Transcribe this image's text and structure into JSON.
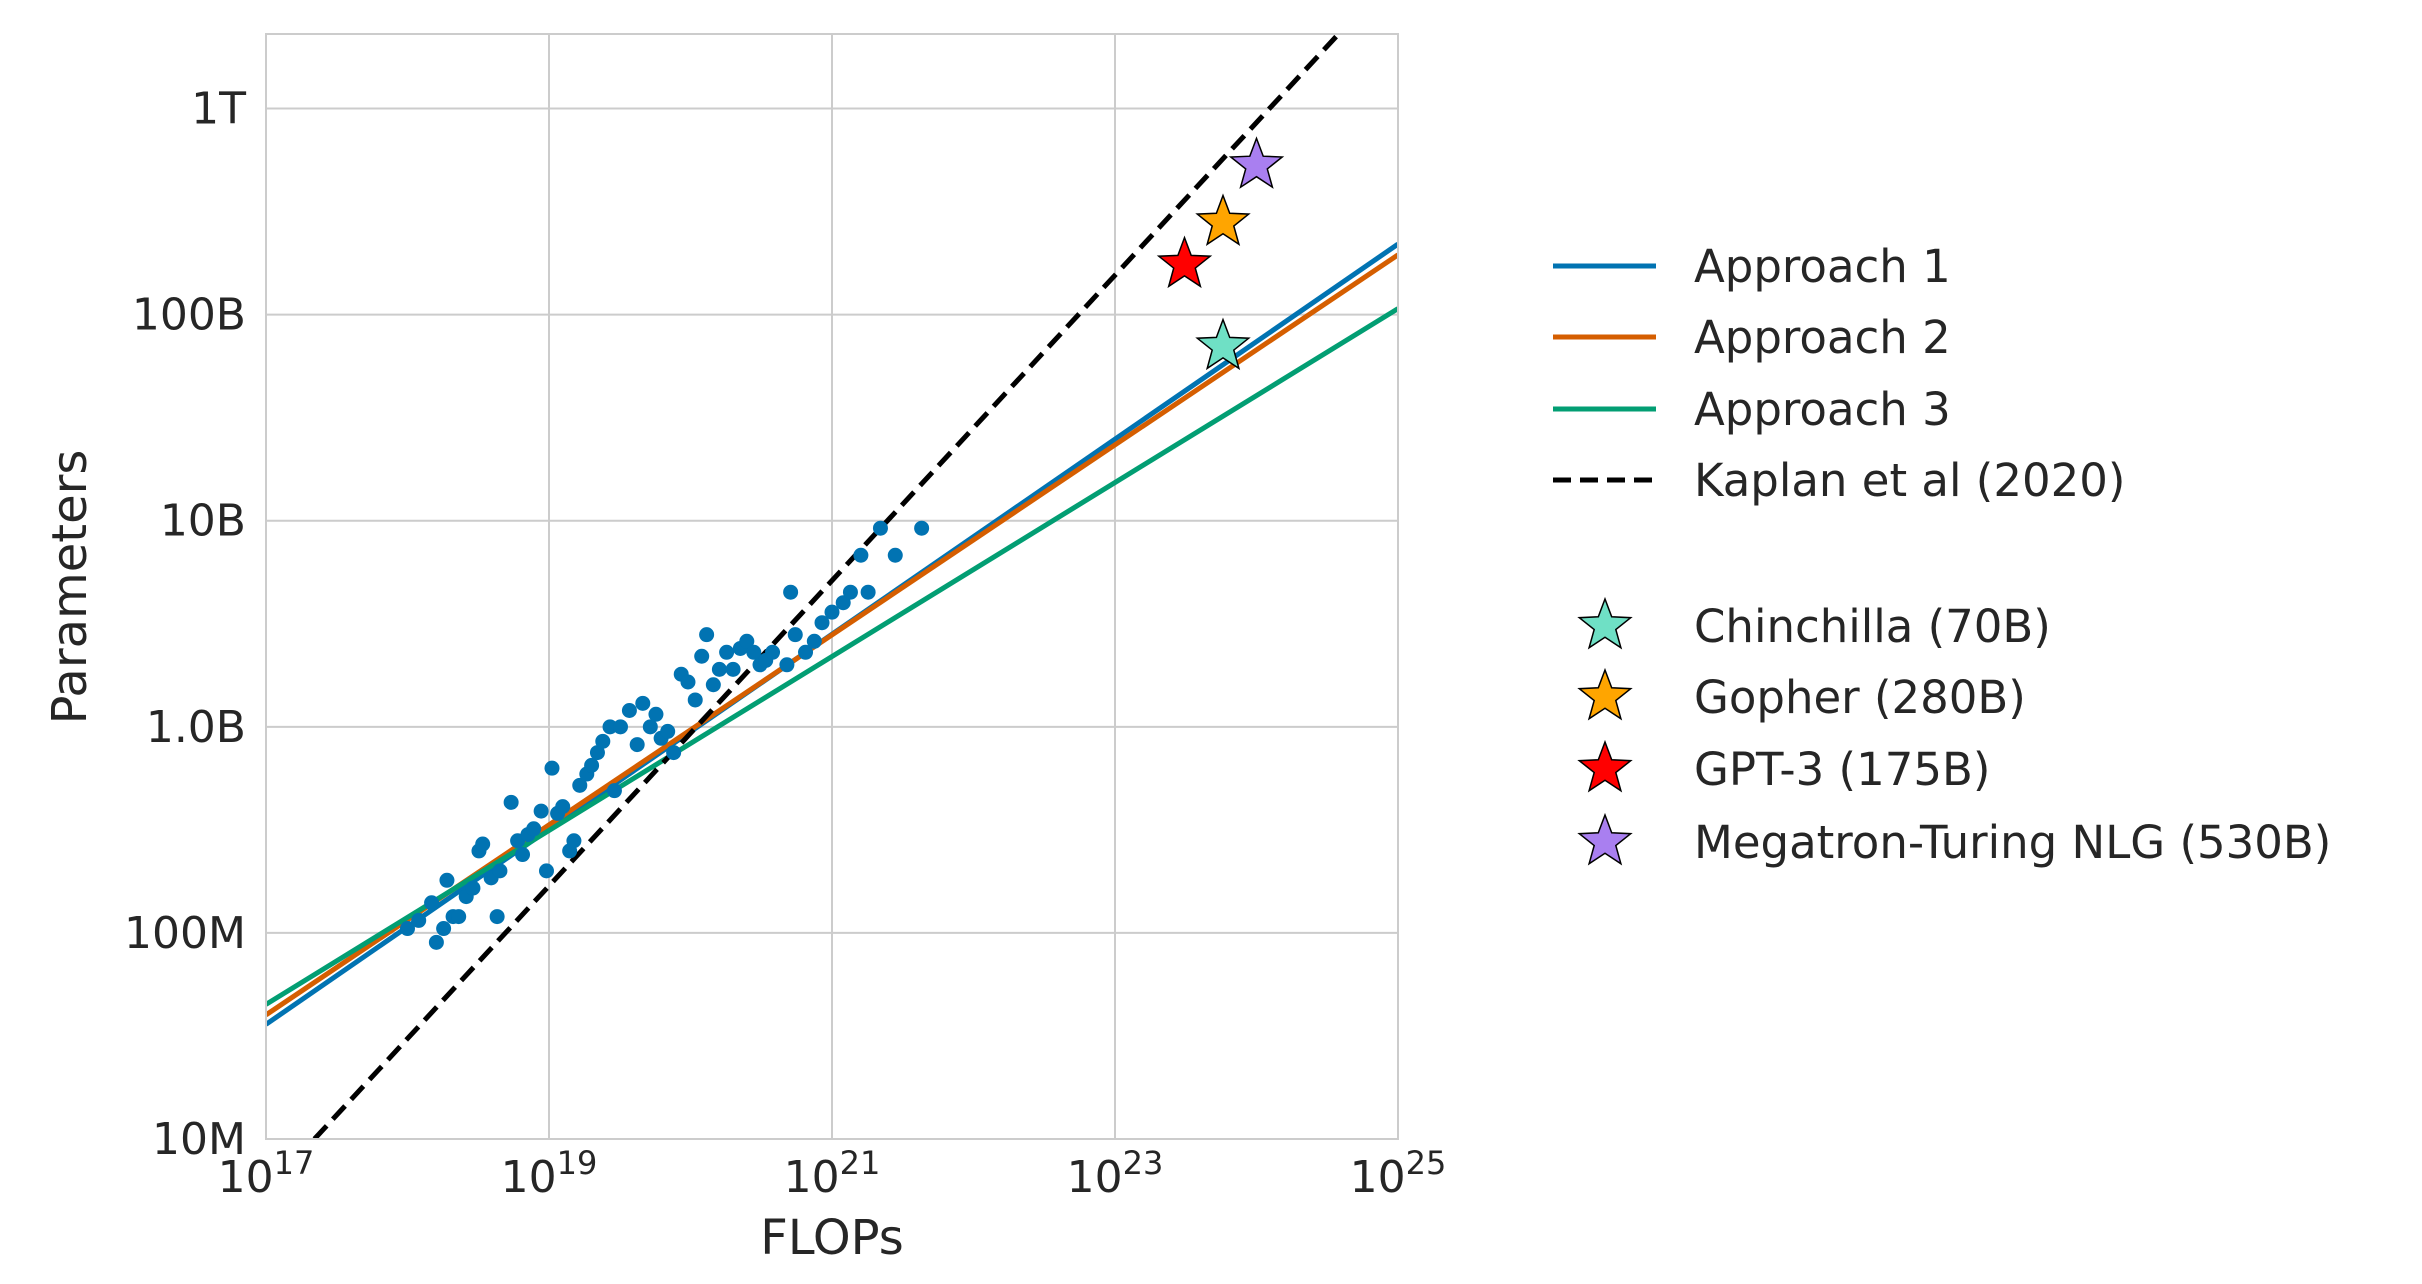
{
  "chart_data": {
    "type": "line",
    "title": "",
    "xlabel": "FLOPs",
    "ylabel": "Parameters",
    "xscale": "log",
    "yscale": "log",
    "xlim": [
      1e+17,
      1e+25
    ],
    "ylim": [
      10000000.0,
      2300000000000.0
    ],
    "grid": true,
    "legend_placement": "right, outside",
    "x_ticks": [
      {
        "base": "10",
        "exp": "17",
        "value": 1e+17
      },
      {
        "base": "10",
        "exp": "19",
        "value": 1e+19
      },
      {
        "base": "10",
        "exp": "21",
        "value": 1e+21
      },
      {
        "base": "10",
        "exp": "23",
        "value": 1e+23
      },
      {
        "base": "10",
        "exp": "25",
        "value": 1e+25
      }
    ],
    "y_ticks": [
      {
        "label": "10M",
        "value": 10000000.0
      },
      {
        "label": "100M",
        "value": 100000000.0
      },
      {
        "label": "1.0B",
        "value": 1000000000.0
      },
      {
        "label": "10B",
        "value": 10000000000.0
      },
      {
        "label": "100B",
        "value": 100000000000.0
      },
      {
        "label": "1T",
        "value": 1000000000000.0
      }
    ],
    "series": [
      {
        "name": "Approach 1",
        "color": "#0173b2",
        "style": "solid",
        "x": [
          1e+17,
          1e+25
        ],
        "y": [
          36000000.0,
          220000000000.0
        ]
      },
      {
        "name": "Approach 2",
        "color": "#d55e00",
        "style": "solid",
        "x": [
          1e+17,
          1e+25
        ],
        "y": [
          40000000.0,
          195000000000.0
        ]
      },
      {
        "name": "Approach 3",
        "color": "#029e73",
        "style": "solid",
        "x": [
          1e+17,
          1e+25
        ],
        "y": [
          45000000.0,
          107000000000.0
        ]
      },
      {
        "name": "Kaplan et al (2020)",
        "color": "#000000",
        "style": "dashed",
        "x": [
          2.2e+17,
          3.8e+24
        ],
        "y": [
          10000000.0,
          2300000000000.0
        ]
      }
    ],
    "models": [
      {
        "name": "Chinchilla (70B)",
        "flops": 5.8e+23,
        "params": 70000000000.0,
        "color": "#6fe0c5"
      },
      {
        "name": "Gopher (280B)",
        "flops": 5.8e+23,
        "params": 280000000000.0,
        "color": "#ffa500"
      },
      {
        "name": "GPT-3 (175B)",
        "flops": 3.1e+23,
        "params": 175000000000.0,
        "color": "#ff0000"
      },
      {
        "name": "Megatron-Turing NLG (530B)",
        "flops": 1e+24,
        "params": 530000000000.0,
        "color": "#a97ff0"
      }
    ],
    "scatter": {
      "color": "#0173b2",
      "points": [
        [
          1e+18,
          105000000.0
        ],
        [
          1.2e+18,
          115000000.0
        ],
        [
          1.48e+18,
          140000000.0
        ],
        [
          1.6e+18,
          90000000.0
        ],
        [
          1.8e+18,
          105000000.0
        ],
        [
          1.9e+18,
          180000000.0
        ],
        [
          2.1e+18,
          120000000.0
        ],
        [
          2.3e+18,
          120000000.0
        ],
        [
          2.6e+18,
          150000000.0
        ],
        [
          2.9e+18,
          165000000.0
        ],
        [
          3.2e+18,
          250000000.0
        ],
        [
          3.4e+18,
          270000000.0
        ],
        [
          3.9e+18,
          185000000.0
        ],
        [
          4.3e+18,
          120000000.0
        ],
        [
          4.5e+18,
          200000000.0
        ],
        [
          5.4e+18,
          430000000.0
        ],
        [
          6e+18,
          280000000.0
        ],
        [
          6.5e+18,
          240000000.0
        ],
        [
          7.1e+18,
          300000000.0
        ],
        [
          7.8e+18,
          320000000.0
        ],
        [
          8.8e+18,
          390000000.0
        ],
        [
          9.6e+18,
          200000000.0
        ],
        [
          1.05e+19,
          630000000.0
        ],
        [
          1.15e+19,
          380000000.0
        ],
        [
          1.25e+19,
          410000000.0
        ],
        [
          1.4e+19,
          250000000.0
        ],
        [
          1.5e+19,
          280000000.0
        ],
        [
          1.65e+19,
          520000000.0
        ],
        [
          1.85e+19,
          590000000.0
        ],
        [
          2e+19,
          650000000.0
        ],
        [
          2.2e+19,
          750000000.0
        ],
        [
          2.4e+19,
          850000000.0
        ],
        [
          2.7e+19,
          1000000000.0
        ],
        [
          2.9e+19,
          490000000.0
        ],
        [
          3.2e+19,
          1000000000.0
        ],
        [
          3.7e+19,
          1200000000.0
        ],
        [
          4.2e+19,
          820000000.0
        ],
        [
          4.6e+19,
          1300000000.0
        ],
        [
          5.2e+19,
          1000000000.0
        ],
        [
          5.7e+19,
          1150000000.0
        ],
        [
          6.2e+19,
          880000000.0
        ],
        [
          6.9e+19,
          950000000.0
        ],
        [
          7.6e+19,
          750000000.0
        ],
        [
          8.6e+19,
          1800000000.0
        ],
        [
          9.6e+19,
          1650000000.0
        ],
        [
          1.08e+20,
          1350000000.0
        ],
        [
          1.2e+20,
          2200000000.0
        ],
        [
          1.3e+20,
          2800000000.0
        ],
        [
          1.45e+20,
          1600000000.0
        ],
        [
          1.6e+20,
          1900000000.0
        ],
        [
          1.8e+20,
          2300000000.0
        ],
        [
          2e+20,
          1900000000.0
        ],
        [
          2.25e+20,
          2400000000.0
        ],
        [
          2.5e+20,
          2600000000.0
        ],
        [
          2.8e+20,
          2300000000.0
        ],
        [
          3.1e+20,
          2000000000.0
        ],
        [
          3.4e+20,
          2100000000.0
        ],
        [
          3.8e+20,
          2300000000.0
        ],
        [
          4.8e+20,
          2000000000.0
        ],
        [
          5.1e+20,
          4500000000.0
        ],
        [
          5.5e+20,
          2800000000.0
        ],
        [
          6.5e+20,
          2300000000.0
        ],
        [
          7.5e+20,
          2600000000.0
        ],
        [
          8.5e+20,
          3200000000.0
        ],
        [
          1e+21,
          3600000000.0
        ],
        [
          1.2e+21,
          4000000000.0
        ],
        [
          1.35e+21,
          4500000000.0
        ],
        [
          1.6e+21,
          6800000000.0
        ],
        [
          1.8e+21,
          4500000000.0
        ],
        [
          2.2e+21,
          9200000000.0
        ],
        [
          2.8e+21,
          6800000000.0
        ],
        [
          4.3e+21,
          9200000000.0
        ]
      ]
    }
  }
}
